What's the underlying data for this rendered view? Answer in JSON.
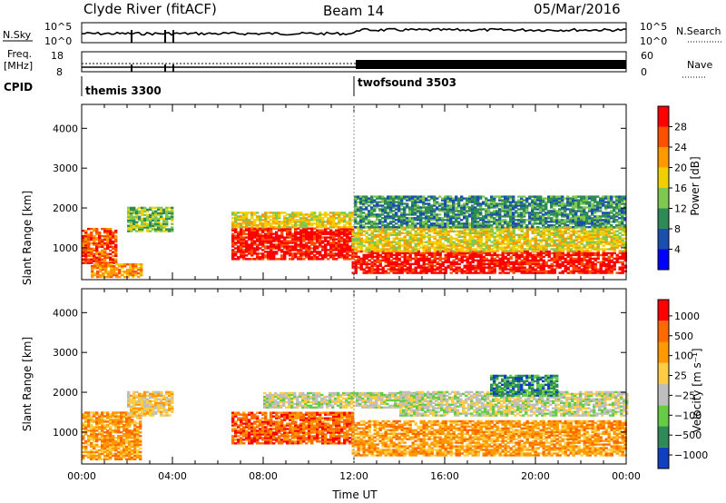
{
  "header": {
    "station": "Clyde River (fitACF)",
    "beam": "Beam 14",
    "date": "05/Mar/2016"
  },
  "top_panels": {
    "nsky_label": "N.Sky",
    "nsky_ticks": [
      "10^5",
      "10^0"
    ],
    "nsearch_label": "N.Search",
    "nsearch_ticks": [
      "10^5",
      "10^0"
    ],
    "freq_label": "Freq.",
    "freq_unit": "[MHz]",
    "freq_ticks": [
      "18",
      "8"
    ],
    "nave_label": "Nave",
    "nave_ticks": [
      "60",
      "0"
    ],
    "cpid_label": "CPID",
    "cpid_segments": [
      {
        "name": "themis 3300",
        "start_hour": 0
      },
      {
        "name": "twofsound 3503",
        "start_hour": 12
      }
    ]
  },
  "chart_data": [
    {
      "type": "heatmap",
      "title": "",
      "ylabel": "Slant Range [km]",
      "xlabel": "",
      "xlim_hours": [
        0,
        24
      ],
      "ylim": [
        200,
        4600
      ],
      "y_ticks": [
        "4000",
        "3000",
        "2000",
        "1000"
      ],
      "colorbar_label": "Power [dB]",
      "colorbar_ticks": [
        "28",
        "24",
        "20",
        "16",
        "12",
        "8",
        "4"
      ],
      "colors": [
        "#0000ff",
        "#1a4fb0",
        "#2e8b57",
        "#7ec850",
        "#f0d000",
        "#ff9900",
        "#ff5000",
        "#ff0000"
      ],
      "regions": [
        {
          "t0": 0.0,
          "t1": 1.5,
          "r0": 600,
          "r1": 1500,
          "level": 6
        },
        {
          "t0": 0.4,
          "t1": 2.6,
          "r0": 250,
          "r1": 600,
          "level": 5
        },
        {
          "t0": 2.0,
          "t1": 4.0,
          "r0": 1400,
          "r1": 2000,
          "level": 3
        },
        {
          "t0": 6.6,
          "t1": 11.9,
          "r0": 700,
          "r1": 1500,
          "level": 7
        },
        {
          "t0": 6.6,
          "t1": 11.9,
          "r0": 1500,
          "r1": 1900,
          "level": 4
        },
        {
          "t0": 11.9,
          "t1": 24.0,
          "r0": 350,
          "r1": 900,
          "level": 7
        },
        {
          "t0": 11.9,
          "t1": 24.0,
          "r0": 900,
          "r1": 1500,
          "level": 4
        },
        {
          "t0": 12.0,
          "t1": 24.0,
          "r0": 1500,
          "r1": 2300,
          "level": 2
        }
      ]
    },
    {
      "type": "heatmap",
      "title": "",
      "ylabel": "Slant Range [km]",
      "xlabel": "Time UT",
      "xlim_hours": [
        0,
        24
      ],
      "ylim": [
        200,
        4600
      ],
      "y_ticks": [
        "4000",
        "3000",
        "2000",
        "1000"
      ],
      "x_ticks": [
        "00:00",
        "04:00",
        "08:00",
        "12:00",
        "16:00",
        "20:00",
        "00:00"
      ],
      "colorbar_label": "Velocity [m s⁻¹]",
      "colorbar_ticks": [
        "1000",
        "500",
        "100",
        "25",
        "−25",
        "−100",
        "−500",
        "−1000"
      ],
      "colors": [
        "#1040c0",
        "#2e8b57",
        "#66cc44",
        "#bebebe",
        "#ffcc44",
        "#ff9900",
        "#ff6a00",
        "#ff0000"
      ],
      "regions": [
        {
          "t0": 0.0,
          "t1": 2.6,
          "r0": 300,
          "r1": 1500,
          "level": 5
        },
        {
          "t0": 2.0,
          "t1": 4.0,
          "r0": 1400,
          "r1": 2000,
          "level": 4
        },
        {
          "t0": 6.6,
          "t1": 11.9,
          "r0": 700,
          "r1": 1500,
          "level": 6
        },
        {
          "t0": 8.0,
          "t1": 15.0,
          "r0": 1600,
          "r1": 2000,
          "level": 3
        },
        {
          "t0": 11.9,
          "t1": 24.0,
          "r0": 400,
          "r1": 1300,
          "level": 5
        },
        {
          "t0": 14.0,
          "t1": 24.0,
          "r0": 1400,
          "r1": 2000,
          "level": 3
        },
        {
          "t0": 18.0,
          "t1": 21.0,
          "r0": 1900,
          "r1": 2400,
          "level": 1
        }
      ]
    }
  ]
}
